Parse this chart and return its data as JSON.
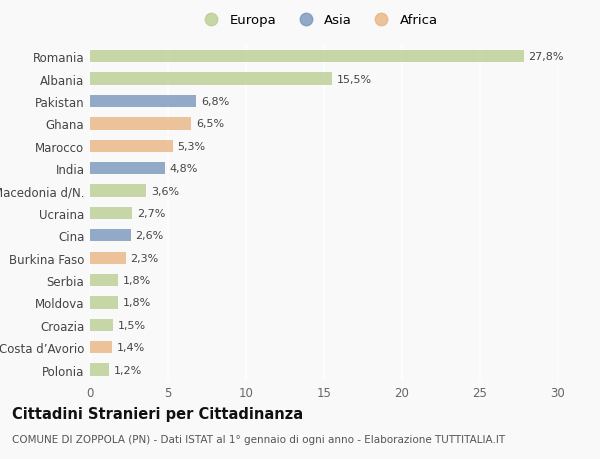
{
  "categories": [
    "Romania",
    "Albania",
    "Pakistan",
    "Ghana",
    "Marocco",
    "India",
    "Macedonia d/N.",
    "Ucraina",
    "Cina",
    "Burkina Faso",
    "Serbia",
    "Moldova",
    "Croazia",
    "Costa d’Avorio",
    "Polonia"
  ],
  "values": [
    27.8,
    15.5,
    6.8,
    6.5,
    5.3,
    4.8,
    3.6,
    2.7,
    2.6,
    2.3,
    1.8,
    1.8,
    1.5,
    1.4,
    1.2
  ],
  "labels": [
    "27,8%",
    "15,5%",
    "6,8%",
    "6,5%",
    "5,3%",
    "4,8%",
    "3,6%",
    "2,7%",
    "2,6%",
    "2,3%",
    "1,8%",
    "1,8%",
    "1,5%",
    "1,4%",
    "1,2%"
  ],
  "continents": [
    "Europa",
    "Europa",
    "Asia",
    "Africa",
    "Africa",
    "Asia",
    "Europa",
    "Europa",
    "Asia",
    "Africa",
    "Europa",
    "Europa",
    "Europa",
    "Africa",
    "Europa"
  ],
  "colors": {
    "Europa": "#b5cb8b",
    "Asia": "#7090b8",
    "Africa": "#e8b07a"
  },
  "legend_order": [
    "Europa",
    "Asia",
    "Africa"
  ],
  "xlim": [
    0,
    30
  ],
  "xticks": [
    0,
    5,
    10,
    15,
    20,
    25,
    30
  ],
  "title": "Cittadini Stranieri per Cittadinanza",
  "subtitle": "COMUNE DI ZOPPOLA (PN) - Dati ISTAT al 1° gennaio di ogni anno - Elaborazione TUTTITALIA.IT",
  "background_color": "#f9f9f9",
  "grid_color": "#ffffff",
  "bar_alpha": 0.75,
  "label_fontsize": 8,
  "ytick_fontsize": 8.5,
  "xtick_fontsize": 8.5,
  "legend_fontsize": 9.5,
  "title_fontsize": 10.5,
  "subtitle_fontsize": 7.5
}
